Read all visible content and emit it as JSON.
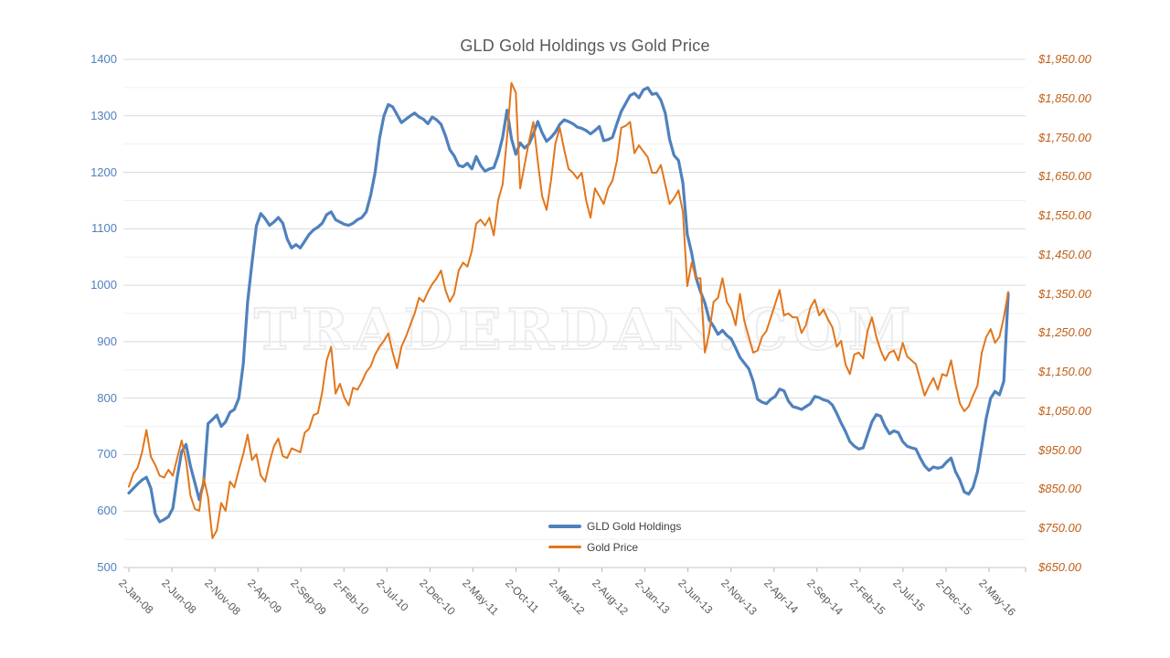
{
  "chart": {
    "title": "GLD Gold Holdings vs Gold Price",
    "watermark": "TRADERDAN.COM"
  },
  "chart_data": {
    "type": "line",
    "title": "GLD Gold Holdings vs Gold Price",
    "grid": "horizontal",
    "legend_position": "bottom-center",
    "x_unit": "semi-monthly points from 2-Jan-2008 to early-May-2016",
    "x_axis": {
      "tick_labels": [
        "2-Jan-08",
        "2-Jun-08",
        "2-Nov-08",
        "2-Apr-09",
        "2-Sep-09",
        "2-Feb-10",
        "2-Jul-10",
        "2-Dec-10",
        "2-May-11",
        "2-Oct-11",
        "2-Mar-12",
        "2-Aug-12",
        "2-Jan-13",
        "2-Jun-13",
        "2-Nov-13",
        "2-Apr-14",
        "2-Sep-14",
        "2-Feb-15",
        "2-Jul-15",
        "2-Dec-15",
        "2-May-16"
      ]
    },
    "y_axis_left": {
      "min": 500,
      "max": 1400,
      "major_step": 100,
      "minor_step": 50,
      "label_color": "#4f81bd",
      "tick_labels": [
        "1400",
        "1300",
        "1200",
        "1100",
        "1000",
        "900",
        "800",
        "700",
        "600",
        "500"
      ]
    },
    "y_axis_right": {
      "min": 650,
      "max": 1950,
      "major_step": 100,
      "label_color": "#c05f18",
      "tick_labels": [
        "$1,950.00",
        "$1,850.00",
        "$1,750.00",
        "$1,650.00",
        "$1,550.00",
        "$1,450.00",
        "$1,350.00",
        "$1,250.00",
        "$1,150.00",
        "$1,050.00",
        "$950.00",
        "$850.00",
        "$750.00",
        "$650.00"
      ]
    },
    "series": [
      {
        "name": "GLD Gold Holdings",
        "axis": "left",
        "color": "#4f81bd",
        "stroke_width": 3.2,
        "values": [
          632,
          640,
          648,
          655,
          660,
          640,
          595,
          581,
          585,
          590,
          605,
          660,
          705,
          718,
          680,
          650,
          620,
          650,
          755,
          762,
          770,
          750,
          758,
          775,
          780,
          800,
          860,
          970,
          1040,
          1105,
          1127,
          1118,
          1106,
          1112,
          1120,
          1110,
          1082,
          1066,
          1072,
          1066,
          1078,
          1090,
          1098,
          1103,
          1110,
          1125,
          1130,
          1116,
          1112,
          1108,
          1106,
          1110,
          1116,
          1120,
          1130,
          1160,
          1200,
          1260,
          1300,
          1320,
          1316,
          1302,
          1288,
          1294,
          1300,
          1305,
          1298,
          1294,
          1286,
          1298,
          1293,
          1285,
          1265,
          1240,
          1229,
          1212,
          1210,
          1216,
          1206,
          1228,
          1212,
          1202,
          1206,
          1208,
          1230,
          1262,
          1310,
          1260,
          1232,
          1252,
          1243,
          1250,
          1268,
          1290,
          1270,
          1255,
          1262,
          1271,
          1285,
          1293,
          1290,
          1286,
          1280,
          1278,
          1274,
          1268,
          1274,
          1281,
          1256,
          1258,
          1262,
          1286,
          1308,
          1322,
          1336,
          1340,
          1332,
          1346,
          1350,
          1338,
          1340,
          1328,
          1305,
          1258,
          1230,
          1221,
          1181,
          1090,
          1057,
          1013,
          989,
          969,
          939,
          927,
          913,
          920,
          911,
          905,
          889,
          872,
          862,
          852,
          830,
          798,
          793,
          790,
          798,
          803,
          816,
          813,
          795,
          785,
          783,
          780,
          785,
          790,
          803,
          801,
          797,
          795,
          788,
          773,
          756,
          741,
          723,
          715,
          710,
          712,
          735,
          758,
          771,
          768,
          750,
          737,
          742,
          739,
          723,
          715,
          712,
          710,
          694,
          680,
          672,
          678,
          676,
          678,
          687,
          694,
          670,
          655,
          634,
          630,
          642,
          669,
          715,
          765,
          800,
          812,
          806,
          830,
          985
        ]
      },
      {
        "name": "Gold Price",
        "axis": "right",
        "color": "#e2761b",
        "stroke_width": 2,
        "values": [
          857,
          890,
          905,
          945,
          1002,
          933,
          912,
          885,
          880,
          900,
          885,
          930,
          975,
          925,
          835,
          800,
          795,
          880,
          830,
          725,
          745,
          815,
          795,
          870,
          855,
          900,
          940,
          990,
          925,
          940,
          885,
          870,
          920,
          960,
          980,
          935,
          930,
          955,
          950,
          945,
          995,
          1005,
          1040,
          1045,
          1100,
          1180,
          1215,
          1095,
          1120,
          1085,
          1065,
          1110,
          1105,
          1125,
          1150,
          1165,
          1195,
          1215,
          1230,
          1249,
          1200,
          1160,
          1215,
          1240,
          1270,
          1300,
          1340,
          1330,
          1355,
          1375,
          1390,
          1410,
          1360,
          1330,
          1350,
          1410,
          1430,
          1420,
          1460,
          1530,
          1540,
          1525,
          1545,
          1500,
          1590,
          1630,
          1750,
          1890,
          1865,
          1620,
          1680,
          1740,
          1790,
          1690,
          1600,
          1565,
          1640,
          1735,
          1775,
          1720,
          1670,
          1660,
          1645,
          1660,
          1590,
          1545,
          1620,
          1600,
          1580,
          1620,
          1640,
          1690,
          1775,
          1780,
          1790,
          1710,
          1730,
          1715,
          1700,
          1660,
          1660,
          1680,
          1630,
          1580,
          1595,
          1615,
          1560,
          1370,
          1430,
          1390,
          1390,
          1200,
          1250,
          1330,
          1340,
          1390,
          1330,
          1310,
          1270,
          1350,
          1280,
          1240,
          1200,
          1205,
          1240,
          1255,
          1290,
          1325,
          1360,
          1295,
          1300,
          1290,
          1290,
          1250,
          1270,
          1315,
          1335,
          1295,
          1310,
          1285,
          1265,
          1215,
          1230,
          1170,
          1145,
          1195,
          1200,
          1185,
          1255,
          1290,
          1240,
          1205,
          1180,
          1200,
          1205,
          1180,
          1225,
          1190,
          1180,
          1170,
          1130,
          1090,
          1115,
          1135,
          1105,
          1145,
          1140,
          1180,
          1120,
          1070,
          1050,
          1062,
          1090,
          1115,
          1200,
          1240,
          1260,
          1225,
          1240,
          1290,
          1355
        ]
      }
    ]
  },
  "legend": {
    "items": [
      {
        "label": "GLD Gold Holdings",
        "color": "#4f81bd",
        "thickness": 4
      },
      {
        "label": "Gold Price",
        "color": "#e2761b",
        "thickness": 2.5
      }
    ]
  }
}
